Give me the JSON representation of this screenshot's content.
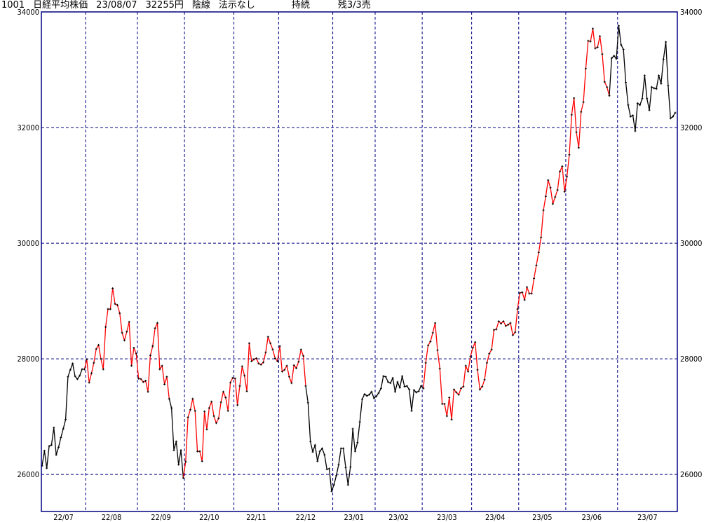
{
  "header": {
    "code": "1001",
    "name": "日経平均株価",
    "date": "23/08/07",
    "price": "32255円",
    "candle": "陰線",
    "signal": "法示なし",
    "status": "持続",
    "remain": "残3/3売"
  },
  "colors": {
    "frame": "#000080",
    "grid": "#000080",
    "line": "#000000",
    "signal_line": "#ff0000",
    "marker": "#000000"
  },
  "chart_data": {
    "type": "line",
    "title": "",
    "ylim": [
      25360,
      34000
    ],
    "yticks": [
      26000,
      28000,
      30000,
      32000,
      34000
    ],
    "ytick_labels": [
      "26000",
      "28000",
      "30000",
      "32000",
      "34000"
    ],
    "grid": true,
    "month_labels": [
      "22/07",
      "22/08",
      "22/09",
      "22/10",
      "22/11",
      "22/12",
      "23/01",
      "23/02",
      "23/03",
      "23/04",
      "23/05",
      "23/06",
      "23/07"
    ],
    "month_start_index": [
      0,
      19,
      41,
      61,
      82,
      101,
      124,
      142,
      162,
      183,
      203,
      223,
      245,
      265
    ],
    "red_ranges": [
      [
        18,
        54
      ],
      [
        60,
        112
      ],
      [
        162,
        241
      ]
    ],
    "values": [
      26150,
      26410,
      26110,
      26490,
      26510,
      26810,
      26340,
      26470,
      26640,
      26790,
      26950,
      27690,
      27810,
      27920,
      27700,
      27650,
      27710,
      27820,
      27820,
      27990,
      27590,
      27750,
      27930,
      28170,
      28240,
      28000,
      27820,
      28550,
      28860,
      28860,
      29220,
      28950,
      28930,
      28790,
      28450,
      28320,
      28470,
      28640,
      27880,
      28190,
      28090,
      27660,
      27650,
      27600,
      27620,
      27430,
      28060,
      28220,
      28530,
      28620,
      27820,
      27880,
      27560,
      27690,
      27310,
      27150,
      26420,
      26570,
      26170,
      26420,
      25940,
      26220,
      26990,
      27120,
      27310,
      27100,
      26400,
      26400,
      26230,
      27090,
      26780,
      27150,
      27260,
      27010,
      26890,
      26970,
      27250,
      27430,
      27330,
      27100,
      27590,
      27670,
      27660,
      27200,
      27530,
      27870,
      27710,
      27440,
      28270,
      27960,
      27990,
      28010,
      27920,
      27900,
      27940,
      28110,
      28380,
      28270,
      28160,
      28010,
      27960,
      28220,
      27780,
      27810,
      27880,
      27690,
      27580,
      27890,
      27840,
      27950,
      28160,
      28050,
      27530,
      27240,
      26570,
      26390,
      26510,
      26230,
      26400,
      26450,
      26340,
      26090,
      26100,
      25710,
      25820,
      25980,
      26170,
      26450,
      26450,
      26120,
      25820,
      26130,
      26790,
      26400,
      26550,
      26910,
      27300,
      27390,
      27360,
      27380,
      27430,
      27320,
      27350,
      27410,
      27490,
      27700,
      27690,
      27600,
      27580,
      27670,
      27430,
      27600,
      27500,
      27700,
      27520,
      27530,
      27470,
      27100,
      27460,
      27420,
      27440,
      27530,
      27490,
      27930,
      28230,
      28300,
      28450,
      28620,
      28150,
      27830,
      27220,
      27220,
      27010,
      27330,
      26950,
      27470,
      27420,
      27380,
      27490,
      27520,
      27880,
      27780,
      28040,
      28190,
      28290,
      27810,
      27470,
      27520,
      27640,
      27930,
      28090,
      28160,
      28500,
      28510,
      28650,
      28610,
      28650,
      28570,
      28590,
      28620,
      28410,
      28460,
      28860,
      29140,
      29150,
      29020,
      29240,
      29130,
      29130,
      29390,
      29620,
      29840,
      30100,
      30570,
      30810,
      31090,
      30960,
      30680,
      30800,
      30920,
      31240,
      31330,
      30890,
      31150,
      31530,
      32220,
      32510,
      31920,
      31650,
      32270,
      32440,
      33020,
      33500,
      33490,
      33710,
      33370,
      33390,
      33580,
      33270,
      32790,
      32700,
      32550,
      33200,
      33240,
      33190,
      33760,
      33430,
      33350,
      32780,
      32390,
      32190,
      32210,
      31940,
      32420,
      32390,
      32500,
      32900,
      32500,
      32300,
      32700,
      32680,
      32670,
      32900,
      32760,
      33180,
      33480,
      32720,
      32160,
      32190,
      32255
    ]
  }
}
